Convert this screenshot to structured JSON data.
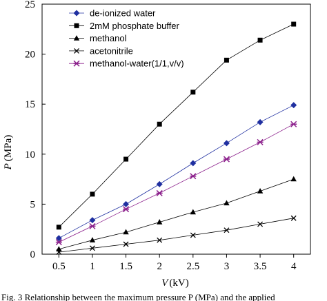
{
  "chart_data": {
    "type": "line",
    "x": [
      0.5,
      1,
      1.5,
      2,
      2.5,
      3,
      3.5,
      4
    ],
    "xticks": [
      "0.5",
      "1",
      "1.5",
      "2",
      "2.5",
      "3",
      "3.5",
      "4"
    ],
    "yticks": [
      "0",
      "5",
      "10",
      "15",
      "20",
      "25"
    ],
    "xlim": [
      0.25,
      4.25
    ],
    "ylim": [
      0,
      25
    ],
    "xlabel_var": "V",
    "xlabel_unit": "(kV)",
    "ylabel_var": "P",
    "ylabel_unit": "(MPa)",
    "grid": false,
    "legend_position": "top-left",
    "series": [
      {
        "name": "de-ionized water",
        "marker": "diamond",
        "color": "#1f2fa0",
        "values": [
          1.6,
          3.4,
          5.0,
          7.0,
          9.1,
          11.1,
          13.2,
          14.9
        ]
      },
      {
        "name": "2mM phosphate buffer",
        "marker": "square",
        "color": "#000000",
        "values": [
          2.7,
          6.0,
          9.5,
          13.0,
          16.2,
          19.4,
          21.4,
          23.0
        ]
      },
      {
        "name": "methanol",
        "marker": "triangle",
        "color": "#000000",
        "values": [
          0.5,
          1.4,
          2.2,
          3.2,
          4.2,
          5.1,
          6.3,
          7.5
        ]
      },
      {
        "name": "acetonitrile",
        "marker": "cross",
        "color": "#000000",
        "values": [
          0.2,
          0.6,
          1.0,
          1.4,
          1.9,
          2.4,
          3.0,
          3.6
        ]
      },
      {
        "name": "methanol-water(1/1,v/v)",
        "marker": "star",
        "color": "#8b1f8b",
        "values": [
          1.2,
          2.8,
          4.5,
          6.1,
          7.8,
          9.5,
          11.2,
          13.0
        ]
      }
    ]
  },
  "caption": {
    "text": "Fig. 3   Relationship between the maximum pressure P (MPa) and the applied"
  }
}
